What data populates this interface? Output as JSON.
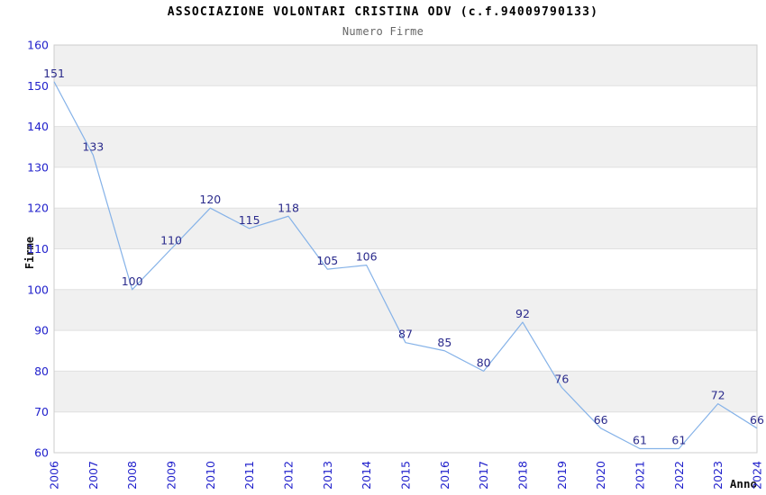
{
  "chart_data": {
    "type": "line",
    "title": "ASSOCIAZIONE VOLONTARI CRISTINA ODV (c.f.94009790133)",
    "subtitle": "Numero Firme",
    "xlabel": "Anno",
    "ylabel": "Firme",
    "categories": [
      "2006",
      "2007",
      "2008",
      "2009",
      "2010",
      "2011",
      "2012",
      "2013",
      "2014",
      "2015",
      "2016",
      "2017",
      "2018",
      "2019",
      "2020",
      "2021",
      "2022",
      "2023",
      "2024"
    ],
    "series": [
      {
        "name": "Numero Firme",
        "values": [
          151,
          133,
          100,
          110,
          120,
          115,
          118,
          105,
          106,
          87,
          85,
          80,
          92,
          76,
          66,
          61,
          61,
          72,
          66
        ]
      }
    ],
    "ylim": [
      60,
      160
    ],
    "yticks": [
      60,
      70,
      80,
      90,
      100,
      110,
      120,
      130,
      140,
      150,
      160
    ],
    "grid": true,
    "legend": false,
    "band_fill": true,
    "data_labels": true,
    "colors": {
      "line": "#85b2e8",
      "tick_label": "#2222cc",
      "data_label": "#2b2b8c",
      "band": "#f0f0f0",
      "gridline": "#e0e0e0",
      "border": "#cccccc",
      "title": "#000000",
      "subtitle": "#666666"
    }
  }
}
